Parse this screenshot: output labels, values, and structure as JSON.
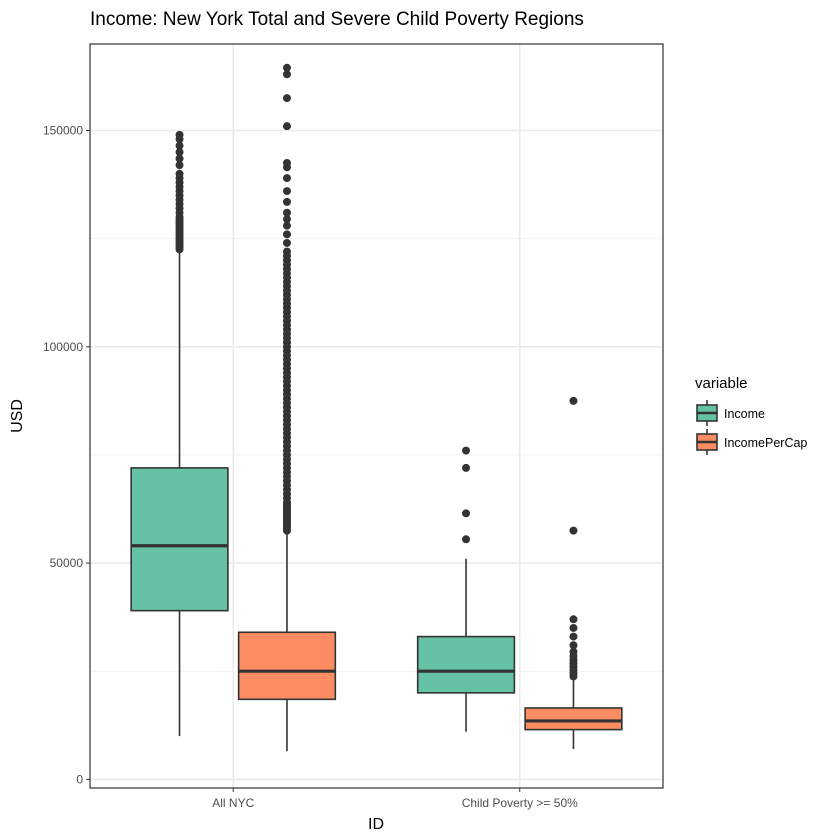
{
  "chart_data": {
    "type": "boxplot",
    "title": "Income: New York Total and Severe Child Poverty Regions",
    "xlabel": "ID",
    "ylabel": "USD",
    "categories": [
      "All NYC",
      "Child Poverty >= 50%"
    ],
    "ylim": [
      -2000,
      170000
    ],
    "yticks": [
      0,
      50000,
      100000,
      150000
    ],
    "ytick_labels": [
      "0",
      "50000",
      "100000",
      "150000"
    ],
    "grid": true,
    "legend": {
      "title": "variable",
      "position": "right"
    },
    "series": [
      {
        "name": "Income",
        "color": "#66c2a5",
        "boxes": [
          {
            "category": "All NYC",
            "whisker_low": 10000,
            "q1": 39000,
            "median": 54000,
            "q3": 72000,
            "whisker_high": 122000,
            "outliers": [
              122500,
              123000,
              123500,
              124000,
              124500,
              125000,
              125500,
              126000,
              126500,
              127000,
              127500,
              128000,
              128500,
              129000,
              129500,
              130000,
              131000,
              132000,
              133000,
              134000,
              135000,
              136000,
              137000,
              138000,
              139000,
              140000,
              142000,
              143500,
              145000,
              146500,
              148000,
              149000
            ]
          },
          {
            "category": "Child Poverty >= 50%",
            "whisker_low": 11000,
            "q1": 20000,
            "median": 25000,
            "q3": 33000,
            "whisker_high": 51000,
            "outliers": [
              55500,
              61500,
              72000,
              76000
            ]
          }
        ]
      },
      {
        "name": "IncomePerCap",
        "color": "#fc8d62",
        "boxes": [
          {
            "category": "All NYC",
            "whisker_low": 6500,
            "q1": 18500,
            "median": 25000,
            "q3": 34000,
            "whisker_high": 57000,
            "outliers": [
              57500,
              58000,
              58500,
              59000,
              59500,
              60000,
              60500,
              61000,
              61500,
              62000,
              62500,
              63000,
              63500,
              64000,
              65000,
              66000,
              67000,
              68000,
              69000,
              70000,
              71000,
              72000,
              73000,
              74000,
              75000,
              76000,
              77000,
              78000,
              79000,
              80000,
              81000,
              82000,
              83000,
              84000,
              85000,
              86000,
              87000,
              88000,
              89000,
              90000,
              91000,
              92000,
              93000,
              94000,
              95000,
              96000,
              97000,
              98000,
              99000,
              100000,
              101000,
              102000,
              103000,
              104000,
              105000,
              106000,
              107000,
              108000,
              109000,
              110000,
              111000,
              112000,
              113000,
              114000,
              115000,
              116000,
              117000,
              118000,
              119000,
              120000,
              121000,
              122000,
              124000,
              126000,
              128000,
              129500,
              131000,
              133500,
              136000,
              139000,
              141500,
              142500,
              151000,
              157500,
              163000,
              164500
            ]
          },
          {
            "category": "Child Poverty >= 50%",
            "whisker_low": 7000,
            "q1": 11500,
            "median": 13500,
            "q3": 16500,
            "whisker_high": 23500,
            "outliers": [
              23800,
              24500,
              25200,
              26000,
              26800,
              27600,
              28500,
              29500,
              31000,
              33000,
              35000,
              37000,
              57500,
              87500
            ]
          }
        ]
      }
    ]
  }
}
